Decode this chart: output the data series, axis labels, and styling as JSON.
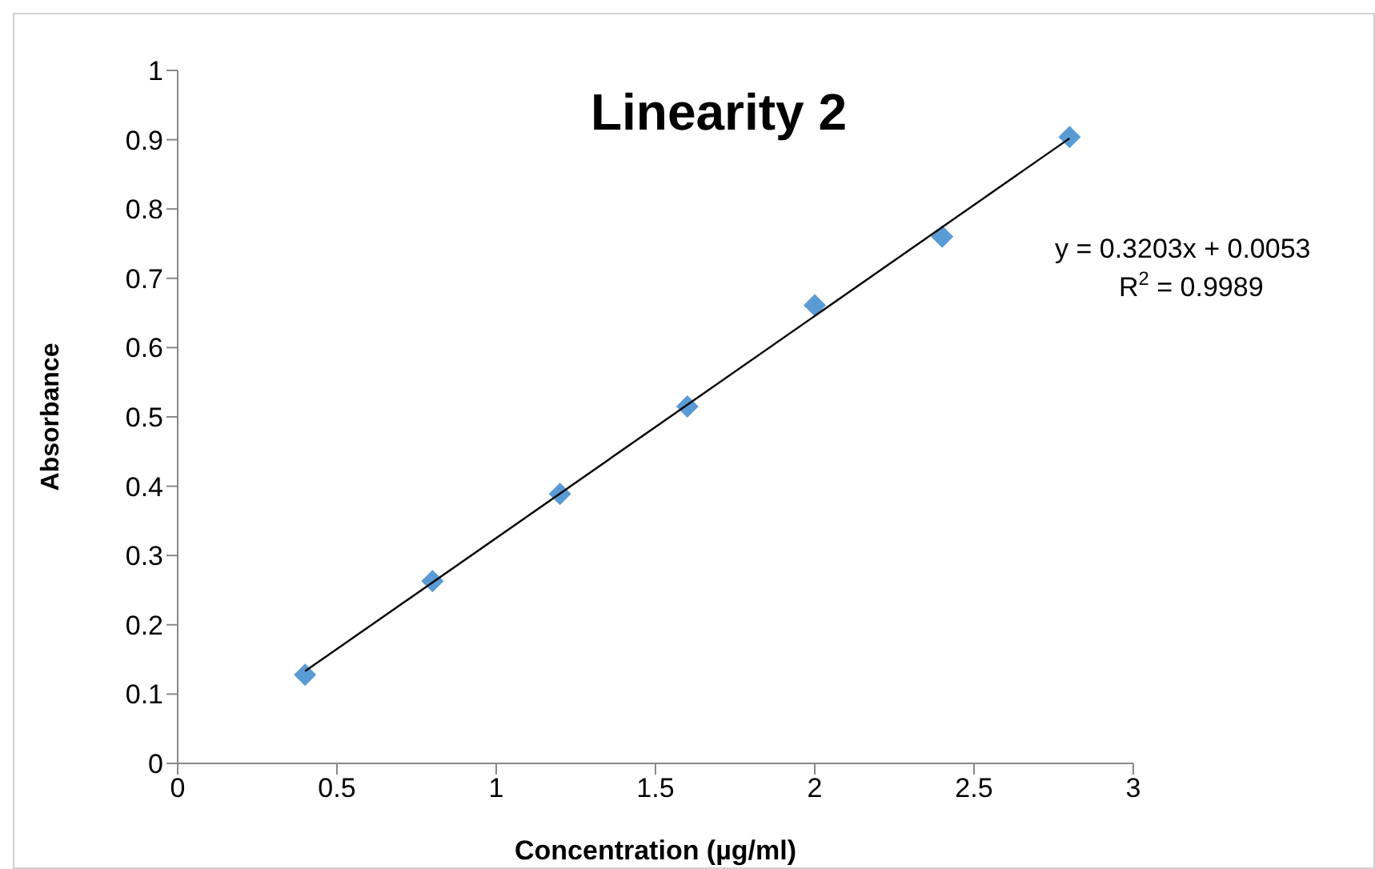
{
  "chart_data": {
    "type": "scatter",
    "title": "Linearity 2",
    "xlabel": "Concentration (µg/ml)",
    "ylabel": "Absorbance",
    "x": [
      0.4,
      0.8,
      1.2,
      1.6,
      2.0,
      2.4,
      2.8
    ],
    "series": [
      {
        "color": "#5b9bd5",
        "values": [
          0.128,
          0.263,
          0.389,
          0.515,
          0.661,
          0.76,
          0.904
        ],
        "marker": "diamond"
      },
      {
        "type": "line",
        "color": "#000000",
        "x": [
          0.4,
          2.8
        ],
        "values": [
          0.133,
          0.902
        ]
      }
    ],
    "annotations": [
      "y = 0.3203x + 0.0053",
      "R$^{2}$ = 0.9989"
    ],
    "xlim": [
      0,
      3
    ],
    "xticks": [
      0,
      0.5,
      1,
      1.5,
      2,
      2.5,
      3
    ],
    "ylim": [
      0,
      1
    ],
    "yticks": [
      0,
      0.1,
      0.2,
      0.3,
      0.4,
      0.5,
      0.6,
      0.7,
      0.8,
      0.9,
      1
    ]
  }
}
